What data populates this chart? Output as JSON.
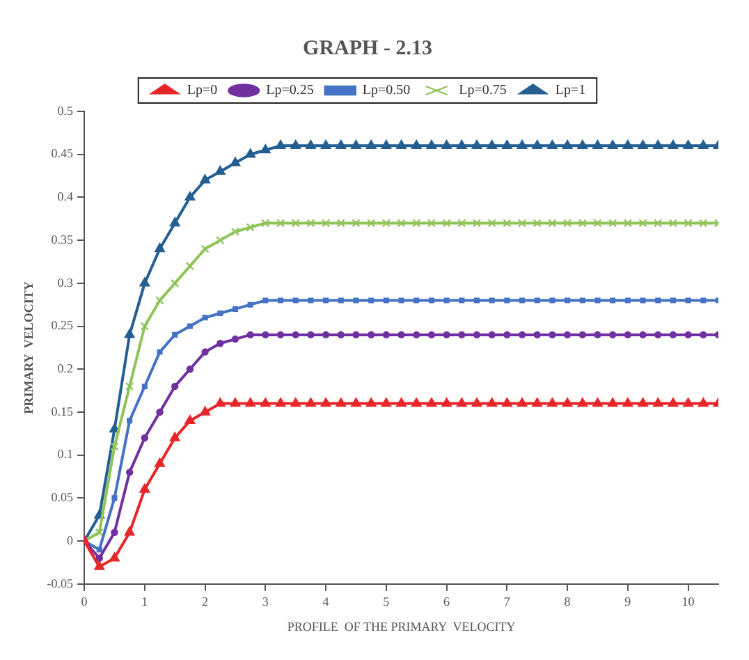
{
  "chart_data": {
    "type": "line",
    "title": "GRAPH - 2.13",
    "xlabel": "PROFILE  OF THE PRIMARY  VELOCITY",
    "ylabel": "PRIMARY  VELOCITY",
    "x": [
      0,
      0.25,
      0.5,
      0.75,
      1,
      1.25,
      1.5,
      1.75,
      2,
      2.25,
      2.5,
      2.75,
      3,
      3.25,
      3.5,
      3.75,
      4,
      4.25,
      4.5,
      4.75,
      5,
      5.25,
      5.5,
      5.75,
      6,
      6.25,
      6.5,
      6.75,
      7,
      7.25,
      7.5,
      7.75,
      8,
      8.25,
      8.5,
      8.75,
      9,
      9.25,
      9.5,
      9.75,
      10,
      10.25,
      10.5
    ],
    "series": [
      {
        "name": "Lp=0",
        "color": "#e8262a",
        "marker": "triangle",
        "values": [
          0,
          -0.03,
          -0.02,
          0.01,
          0.06,
          0.09,
          0.12,
          0.14,
          0.15,
          0.16,
          0.16,
          0.16,
          0.16,
          0.16,
          0.16,
          0.16,
          0.16,
          0.16,
          0.16,
          0.16,
          0.16,
          0.16,
          0.16,
          0.16,
          0.16,
          0.16,
          0.16,
          0.16,
          0.16,
          0.16,
          0.16,
          0.16,
          0.16,
          0.16,
          0.16,
          0.16,
          0.16,
          0.16,
          0.16,
          0.16,
          0.16,
          0.16,
          0.16
        ]
      },
      {
        "name": "Lp=0.25",
        "color": "#7030a0",
        "marker": "circle",
        "values": [
          0,
          -0.02,
          0.01,
          0.08,
          0.12,
          0.15,
          0.18,
          0.2,
          0.22,
          0.23,
          0.235,
          0.24,
          0.24,
          0.24,
          0.24,
          0.24,
          0.24,
          0.24,
          0.24,
          0.24,
          0.24,
          0.24,
          0.24,
          0.24,
          0.24,
          0.24,
          0.24,
          0.24,
          0.24,
          0.24,
          0.24,
          0.24,
          0.24,
          0.24,
          0.24,
          0.24,
          0.24,
          0.24,
          0.24,
          0.24,
          0.24,
          0.24,
          0.24
        ]
      },
      {
        "name": "Lp=0.50",
        "color": "#4472c4",
        "marker": "square",
        "values": [
          0,
          -0.01,
          0.05,
          0.14,
          0.18,
          0.22,
          0.24,
          0.25,
          0.26,
          0.265,
          0.27,
          0.275,
          0.28,
          0.28,
          0.28,
          0.28,
          0.28,
          0.28,
          0.28,
          0.28,
          0.28,
          0.28,
          0.28,
          0.28,
          0.28,
          0.28,
          0.28,
          0.28,
          0.28,
          0.28,
          0.28,
          0.28,
          0.28,
          0.28,
          0.28,
          0.28,
          0.28,
          0.28,
          0.28,
          0.28,
          0.28,
          0.28,
          0.28
        ]
      },
      {
        "name": "Lp=0.75",
        "color": "#8fc45a",
        "marker": "cross",
        "values": [
          0,
          0.01,
          0.11,
          0.18,
          0.25,
          0.28,
          0.3,
          0.32,
          0.34,
          0.35,
          0.36,
          0.365,
          0.37,
          0.37,
          0.37,
          0.37,
          0.37,
          0.37,
          0.37,
          0.37,
          0.37,
          0.37,
          0.37,
          0.37,
          0.37,
          0.37,
          0.37,
          0.37,
          0.37,
          0.37,
          0.37,
          0.37,
          0.37,
          0.37,
          0.37,
          0.37,
          0.37,
          0.37,
          0.37,
          0.37,
          0.37,
          0.37,
          0.37
        ]
      },
      {
        "name": "Lp=1",
        "color": "#255e91",
        "marker": "triangle",
        "values": [
          0,
          0.03,
          0.13,
          0.24,
          0.3,
          0.34,
          0.37,
          0.4,
          0.42,
          0.43,
          0.44,
          0.45,
          0.455,
          0.46,
          0.46,
          0.46,
          0.46,
          0.46,
          0.46,
          0.46,
          0.46,
          0.46,
          0.46,
          0.46,
          0.46,
          0.46,
          0.46,
          0.46,
          0.46,
          0.46,
          0.46,
          0.46,
          0.46,
          0.46,
          0.46,
          0.46,
          0.46,
          0.46,
          0.46,
          0.46,
          0.46,
          0.46,
          0.46
        ]
      }
    ],
    "xlim": [
      0,
      10.5
    ],
    "xticks": [
      0,
      1,
      2,
      3,
      4,
      5,
      6,
      7,
      8,
      9,
      10
    ],
    "ylim": [
      -0.05,
      0.5
    ],
    "yticks": [
      -0.05,
      0,
      0.05,
      0.1,
      0.15,
      0.2,
      0.25,
      0.3,
      0.35,
      0.4,
      0.45,
      0.5
    ],
    "grid": false,
    "legend": "top",
    "line_style": "solid"
  }
}
